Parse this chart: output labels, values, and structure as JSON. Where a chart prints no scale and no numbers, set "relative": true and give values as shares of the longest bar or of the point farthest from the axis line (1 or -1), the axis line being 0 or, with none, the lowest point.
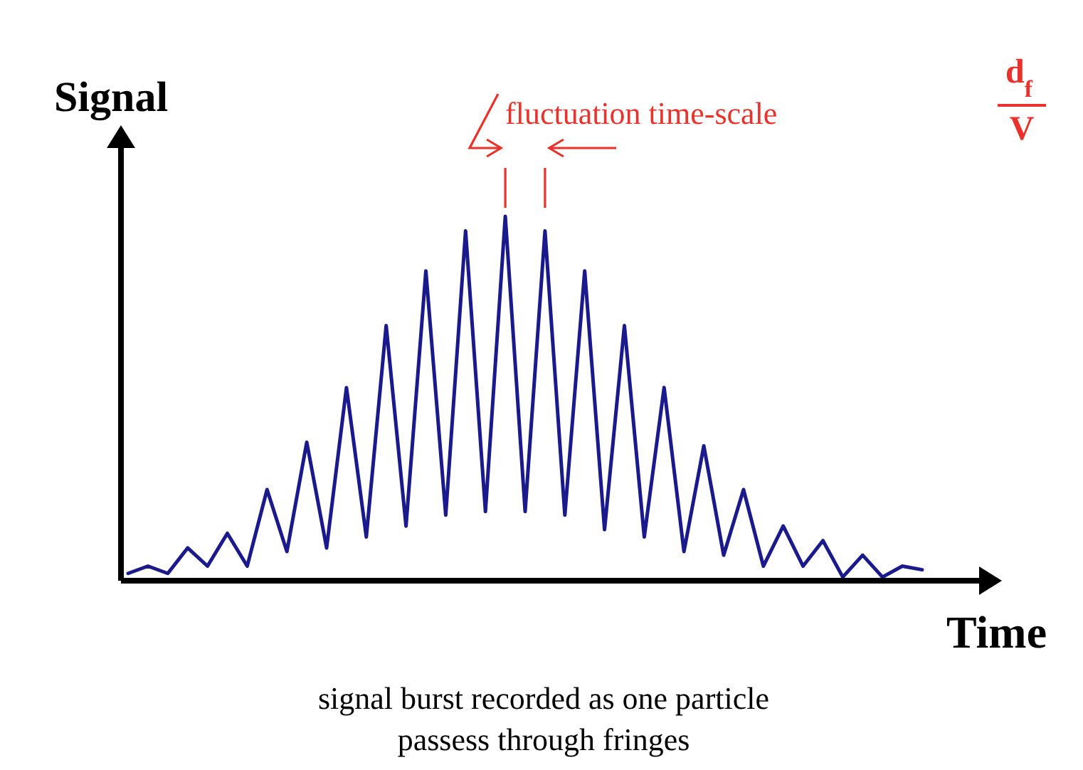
{
  "chart_data": {
    "type": "line",
    "relative": true,
    "xlabel": "Time",
    "ylabel": "Signal",
    "categories": [
      null,
      null,
      null,
      null,
      null,
      null,
      null,
      null,
      null,
      null,
      null,
      null,
      null,
      null,
      null,
      null,
      null,
      null,
      null,
      null,
      null,
      null,
      null,
      null,
      null,
      null,
      null,
      null,
      null,
      null,
      null,
      null,
      null,
      null,
      null,
      null,
      null,
      null,
      null,
      null,
      null
    ],
    "series": [
      {
        "color": "#1a1a8c",
        "values": [
          0.02,
          0.04,
          0.02,
          0.09,
          0.04,
          0.13,
          0.04,
          0.25,
          0.08,
          0.38,
          0.09,
          0.53,
          0.12,
          0.7,
          0.15,
          0.85,
          0.18,
          0.96,
          0.19,
          1,
          0.19,
          0.96,
          0.18,
          0.85,
          0.14,
          0.7,
          0.12,
          0.53,
          0.08,
          0.37,
          0.07,
          0.25,
          0.04,
          0.15,
          0.04,
          0.11,
          0.01,
          0.07,
          0.01,
          0.04,
          0.03
        ]
      }
    ],
    "annotations": [
      "fluctuation time-scale",
      "d$_{f}$",
      "V",
      "signal burst recorded as one particle passess through fringes"
    ]
  }
}
